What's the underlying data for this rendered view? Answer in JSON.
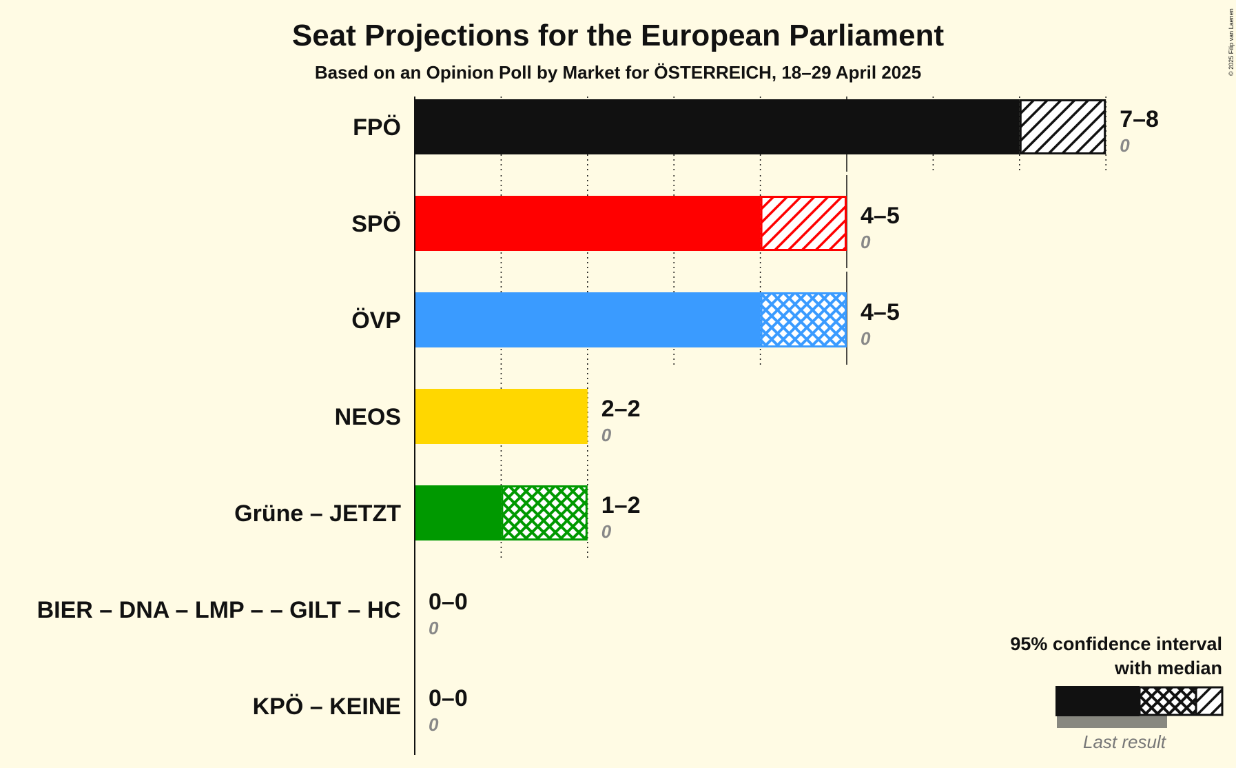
{
  "copyright": "© 2025 Filip van Laenen",
  "legend": {
    "title_line1": "95% confidence interval",
    "title_line2": "with median",
    "last_result": "Last result"
  },
  "chart_data": {
    "type": "bar",
    "orientation": "horizontal",
    "title": "Seat Projections for the European Parliament",
    "subtitle": "Based on an Opinion Poll by Market for ÖSTERREICH, 18–29 April 2025",
    "xlim": [
      0,
      8
    ],
    "grid": true,
    "categories": [
      "FPÖ",
      "SPÖ",
      "ÖVP",
      "NEOS",
      "Grüne – JETZT",
      "BIER – DNA – LMP – – GILT – HC",
      "KPÖ – KEINE"
    ],
    "series": [
      {
        "name": "low",
        "values": [
          7,
          4,
          4,
          2,
          1,
          0,
          0
        ]
      },
      {
        "name": "median",
        "values": [
          7,
          4,
          5,
          2,
          2,
          0,
          0
        ]
      },
      {
        "name": "high",
        "values": [
          8,
          5,
          5,
          2,
          2,
          0,
          0
        ]
      },
      {
        "name": "Last result",
        "values": [
          0,
          0,
          0,
          0,
          0,
          0,
          0
        ]
      }
    ],
    "range_labels": [
      "7–8",
      "4–5",
      "4–5",
      "2–2",
      "1–2",
      "0–0",
      "0–0"
    ],
    "last_labels": [
      "0",
      "0",
      "0",
      "0",
      "0",
      "0",
      "0"
    ],
    "colors": [
      "#111111",
      "#ff0000",
      "#3a9bff",
      "#ffd700",
      "#009900",
      "#555555",
      "#888888"
    ]
  }
}
